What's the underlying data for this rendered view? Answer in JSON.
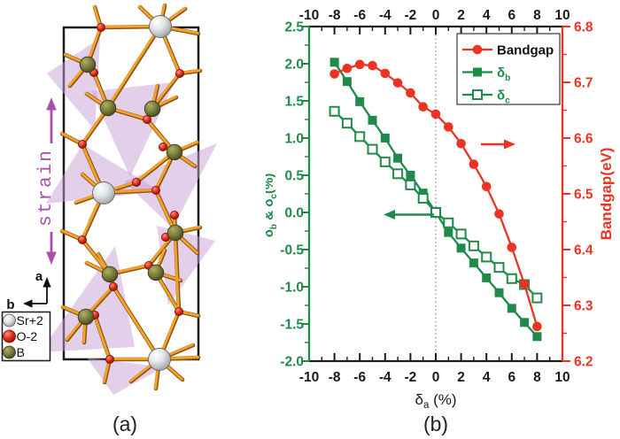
{
  "panel_a": {
    "label": "(a)",
    "strain_label": "strain",
    "axis_a": "a",
    "axis_b": "b",
    "colors": {
      "strain": "#aa4fa9",
      "triangle": "#c9a0d8",
      "bond_light": "#f2a12b",
      "bond_dark": "#8a5512",
      "cell": "#1a1a1a"
    },
    "legend": [
      {
        "name": "Sr+2",
        "species": "strontium",
        "color": "#c9cccd"
      },
      {
        "name": "O-2",
        "species": "oxygen",
        "color": "#d42a1e"
      },
      {
        "name": "B",
        "species": "boron",
        "color": "#787b3c"
      }
    ]
  },
  "panel_b": {
    "label": "(b)"
  },
  "chart_data": {
    "type": "line",
    "x": [
      -8,
      -7,
      -6,
      -5,
      -4,
      -3,
      -2,
      -1,
      0,
      1,
      2,
      3,
      4,
      5,
      6,
      7,
      8
    ],
    "series": [
      {
        "name": "Bandgap",
        "label_segments": [
          {
            "t": "Bandgap"
          }
        ],
        "axis": "right",
        "color": "#ec3323",
        "marker": "circle",
        "values": [
          6.715,
          6.725,
          6.732,
          6.73,
          6.716,
          6.699,
          6.681,
          6.656,
          6.643,
          6.62,
          6.59,
          6.553,
          6.513,
          6.464,
          6.404,
          6.338,
          6.262
        ]
      },
      {
        "name": "delta_b",
        "label_segments": [
          {
            "t": "δ"
          },
          {
            "t": "b",
            "sub": true
          }
        ],
        "axis": "left",
        "color": "#1f8a4a",
        "marker": "square",
        "values": [
          2.02,
          1.76,
          1.49,
          1.24,
          1.0,
          0.73,
          0.5,
          0.26,
          0.0,
          -0.27,
          -0.48,
          -0.68,
          -0.88,
          -1.08,
          -1.29,
          -1.48,
          -1.67
        ]
      },
      {
        "name": "delta_c",
        "label_segments": [
          {
            "t": "δ"
          },
          {
            "t": "c",
            "sub": true
          }
        ],
        "axis": "left",
        "color": "#1f8a4a",
        "marker": "square-open",
        "values": [
          1.36,
          1.2,
          1.02,
          0.85,
          0.68,
          0.52,
          0.37,
          0.19,
          0.0,
          -0.14,
          -0.29,
          -0.45,
          -0.6,
          -0.74,
          -0.89,
          -0.97,
          -1.15
        ]
      }
    ],
    "xlabel": "δa (%)",
    "xlabel_segments": [
      {
        "t": "δ"
      },
      {
        "t": "a",
        "sub": true
      },
      {
        "t": " (%)"
      }
    ],
    "ylabel_left": "δb & δc (%)",
    "ylabel_left_segments": [
      {
        "t": "δ"
      },
      {
        "t": "b",
        "sub": true
      },
      {
        "t": " & δ"
      },
      {
        "t": "c",
        "sub": true
      },
      {
        "t": "(%)"
      }
    ],
    "ylabel_right": "Bandgap(eV)",
    "ylabel_right_segments": [
      {
        "t": "Bandgap(eV)"
      }
    ],
    "xlim": [
      -10,
      10
    ],
    "x_ticks": [
      -10,
      -8,
      -6,
      -4,
      -2,
      0,
      2,
      4,
      6,
      8,
      10
    ],
    "x_minor_step": 1,
    "ylim_left": [
      -2.0,
      2.5
    ],
    "left_ticks": [
      2.5,
      2.0,
      1.5,
      1.0,
      0.5,
      0.0,
      -0.5,
      -1.0,
      -1.5,
      -2.0
    ],
    "left_minor_step": 0.25,
    "ylim_right": [
      6.2,
      6.8
    ],
    "right_ticks": [
      6.8,
      6.7,
      6.6,
      6.5,
      6.4,
      6.3,
      6.2
    ],
    "right_minor_step": 0.05,
    "grid": false,
    "zero_reference_line": true,
    "legend_position": "upper-right",
    "colors": {
      "left_axis": "#1f8a4a",
      "right_axis": "#ec3323",
      "frame": "#1a1a1a"
    },
    "annotations": [
      {
        "type": "arrow",
        "direction": "left",
        "color": "#1f8a4a",
        "meaning": "green curves read on left axis"
      },
      {
        "type": "arrow",
        "direction": "right",
        "color": "#ec3323",
        "meaning": "red curve reads on right axis"
      }
    ]
  }
}
